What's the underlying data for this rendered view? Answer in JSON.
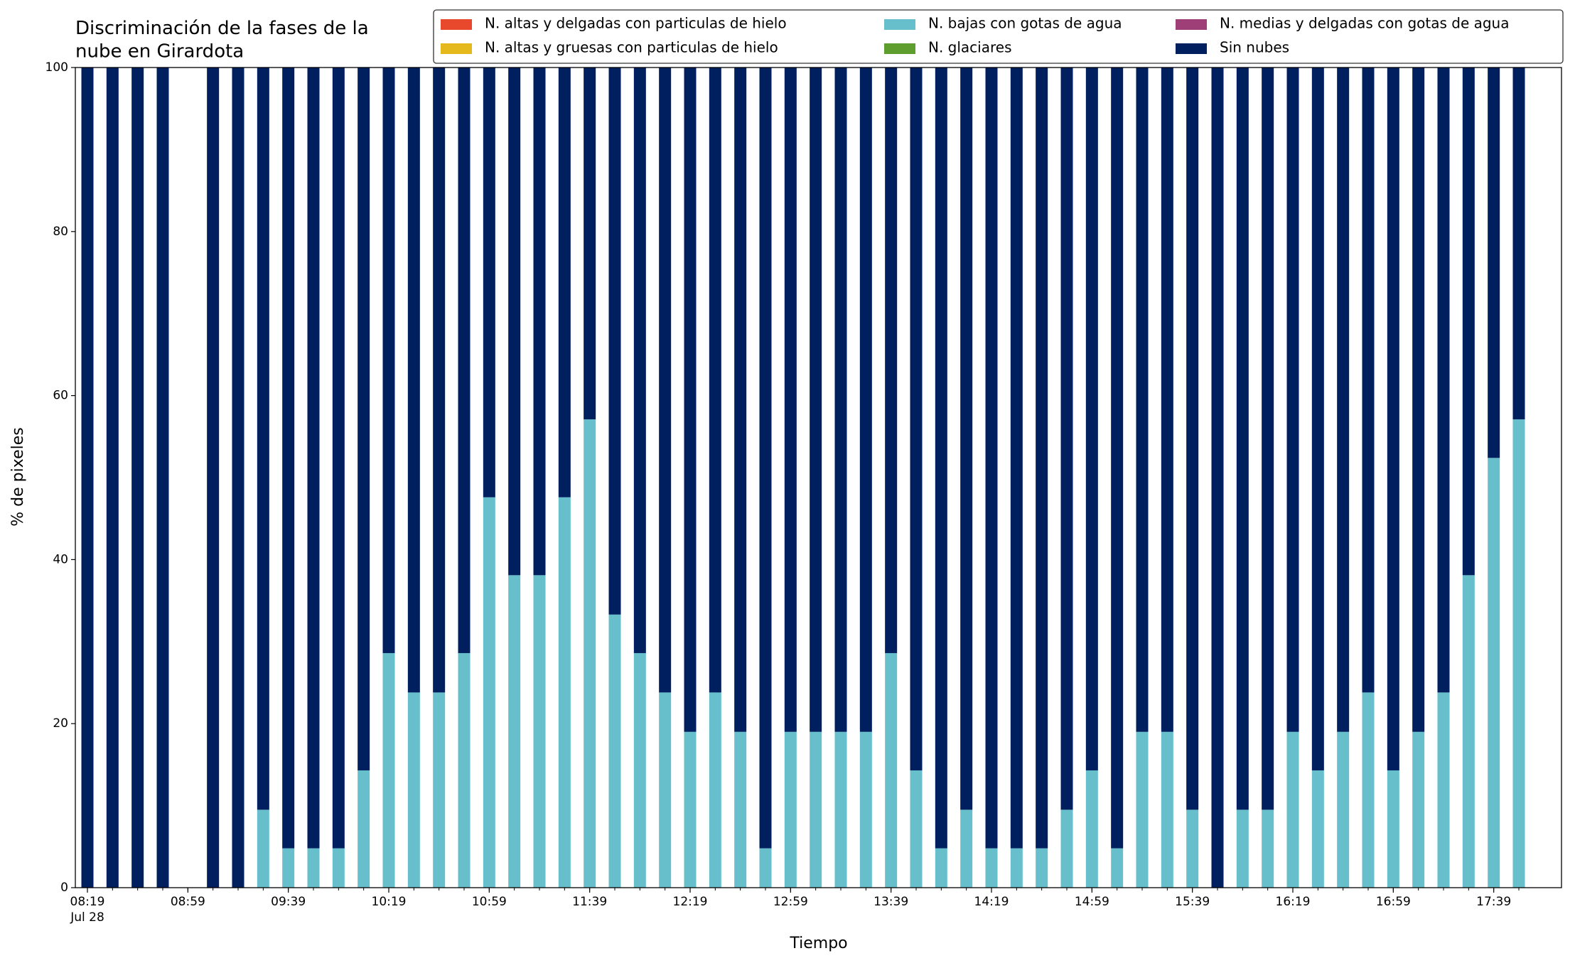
{
  "chart_data": {
    "type": "bar",
    "stacked": true,
    "title": "Discriminación de la fases de la\nnube en Girardota",
    "x_label": "Tiempo",
    "y_label": "% de pixeles",
    "x_date": "Jul 28",
    "x": [
      "08:19",
      "08:29",
      "08:39",
      "08:49",
      "08:59",
      "09:09",
      "09:19",
      "09:29",
      "09:39",
      "09:49",
      "09:59",
      "10:09",
      "10:19",
      "10:29",
      "10:39",
      "10:49",
      "10:59",
      "11:09",
      "11:19",
      "11:29",
      "11:39",
      "11:49",
      "11:59",
      "12:09",
      "12:19",
      "12:29",
      "12:39",
      "12:49",
      "12:59",
      "13:09",
      "13:19",
      "13:29",
      "13:39",
      "13:49",
      "13:59",
      "14:09",
      "14:19",
      "14:29",
      "14:39",
      "14:49",
      "14:59",
      "15:09",
      "15:19",
      "15:29",
      "15:39",
      "15:49",
      "15:59",
      "16:09",
      "16:19",
      "16:29",
      "16:39",
      "16:49",
      "16:59",
      "17:09",
      "17:19",
      "17:29",
      "17:39",
      "17:49"
    ],
    "xticks": [
      "08:19",
      "08:59",
      "09:39",
      "10:19",
      "10:59",
      "11:39",
      "12:19",
      "12:59",
      "13:39",
      "14:19",
      "14:59",
      "15:39",
      "16:19",
      "16:59",
      "17:39"
    ],
    "ylim": [
      0,
      100
    ],
    "yticks": [
      0,
      20,
      40,
      60,
      80,
      100
    ],
    "legend": "upper right",
    "series": [
      {
        "name": "N. altas y delgadas con particulas de hielo",
        "color": "#e8492c",
        "values": [
          0,
          0,
          0,
          0,
          null,
          0,
          0,
          0,
          0,
          0,
          0,
          0,
          0,
          0,
          0,
          0,
          0,
          0,
          0,
          0,
          0,
          0,
          0,
          0,
          0,
          0,
          0,
          0,
          0,
          0,
          0,
          0,
          0,
          0,
          0,
          0,
          0,
          0,
          0,
          0,
          0,
          0,
          0,
          0,
          0,
          0,
          0,
          0,
          0,
          0,
          0,
          0,
          0,
          0,
          0,
          0,
          0,
          0
        ]
      },
      {
        "name": "N. altas y gruesas con particulas de hielo",
        "color": "#e5b81c",
        "values": [
          0,
          0,
          0,
          0,
          null,
          0,
          0,
          0,
          0,
          0,
          0,
          0,
          0,
          0,
          0,
          0,
          0,
          0,
          0,
          0,
          0,
          0,
          0,
          0,
          0,
          0,
          0,
          0,
          0,
          0,
          0,
          0,
          0,
          0,
          0,
          0,
          0,
          0,
          0,
          0,
          0,
          0,
          0,
          0,
          0,
          0,
          0,
          0,
          0,
          0,
          0,
          0,
          0,
          0,
          0,
          0,
          0,
          0
        ]
      },
      {
        "name": "N. bajas con gotas de agua",
        "color": "#66bfcb",
        "values": [
          0,
          0,
          0,
          0,
          null,
          0,
          0,
          9.5,
          4.8,
          4.8,
          4.8,
          14.3,
          28.6,
          23.8,
          23.8,
          28.6,
          47.6,
          38.1,
          38.1,
          47.6,
          57.1,
          33.3,
          28.6,
          23.8,
          19,
          23.8,
          19,
          4.8,
          19,
          19,
          19,
          19,
          28.6,
          14.3,
          4.8,
          9.5,
          4.8,
          4.8,
          4.8,
          9.5,
          14.3,
          4.8,
          19,
          19,
          9.5,
          0,
          9.5,
          9.5,
          19,
          14.3,
          19,
          23.8,
          14.3,
          19,
          23.8,
          38.1,
          52.4,
          57.1
        ]
      },
      {
        "name": "N. glaciares",
        "color": "#5e9e2e",
        "values": [
          0,
          0,
          0,
          0,
          null,
          0,
          0,
          0,
          0,
          0,
          0,
          0,
          0,
          0,
          0,
          0,
          0,
          0,
          0,
          0,
          0,
          0,
          0,
          0,
          0,
          0,
          0,
          0,
          0,
          0,
          0,
          0,
          0,
          0,
          0,
          0,
          0,
          0,
          0,
          0,
          0,
          0,
          0,
          0,
          0,
          0,
          0,
          0,
          0,
          0,
          0,
          0,
          0,
          0,
          0,
          0,
          0,
          0
        ]
      },
      {
        "name": "N. medias y delgadas con gotas de agua",
        "color": "#9e3f78",
        "values": [
          0,
          0,
          0,
          0,
          null,
          0,
          0,
          0,
          0,
          0,
          0,
          0,
          0,
          0,
          0,
          0,
          0,
          0,
          0,
          0,
          0,
          0,
          0,
          0,
          0,
          0,
          0,
          0,
          0,
          0,
          0,
          0,
          0,
          0,
          0,
          0,
          0,
          0,
          0,
          0,
          0,
          0,
          0,
          0,
          0,
          0,
          0,
          0,
          0,
          0,
          0,
          0,
          0,
          0,
          0,
          0,
          0,
          0
        ]
      },
      {
        "name": "Sin nubes",
        "color": "#001f5f",
        "values": [
          100,
          100,
          100,
          100,
          null,
          100,
          100,
          90.5,
          95.2,
          95.2,
          95.2,
          85.7,
          71.4,
          76.2,
          76.2,
          71.4,
          52.4,
          61.9,
          61.9,
          52.4,
          42.9,
          66.7,
          71.4,
          76.2,
          81,
          76.2,
          81,
          95.2,
          81,
          81,
          81,
          81,
          71.4,
          85.7,
          95.2,
          90.5,
          95.2,
          95.2,
          95.2,
          90.5,
          85.7,
          95.2,
          81,
          81,
          90.5,
          100,
          90.5,
          90.5,
          81,
          85.7,
          81,
          76.2,
          85.7,
          81,
          76.2,
          61.9,
          47.6,
          42.9
        ]
      }
    ]
  }
}
